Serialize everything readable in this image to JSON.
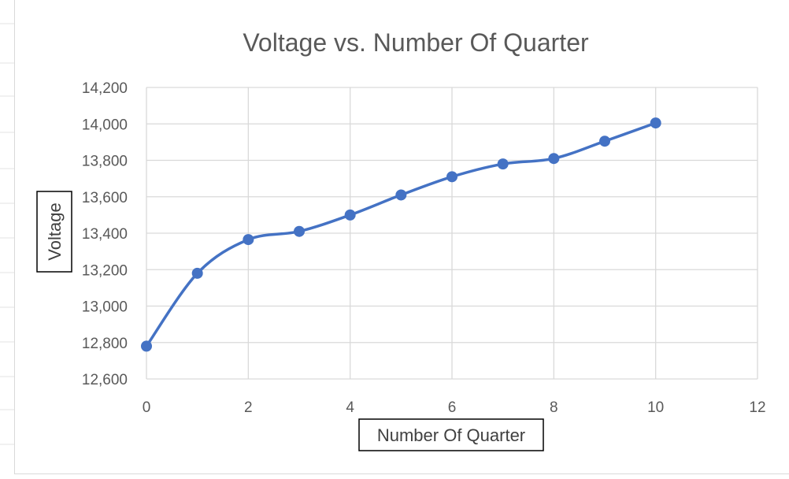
{
  "chart_data": {
    "type": "line",
    "title": "Voltage vs. Number Of Quarter",
    "xlabel": "Number Of Quarter",
    "ylabel": "Voltage",
    "xlim": [
      0,
      12
    ],
    "ylim": [
      12600,
      14200
    ],
    "x_ticks": [
      0,
      2,
      4,
      6,
      8,
      10,
      12
    ],
    "y_ticks": [
      12600,
      12800,
      13000,
      13200,
      13400,
      13600,
      13800,
      14000,
      14200
    ],
    "x_tick_labels": [
      "0",
      "2",
      "4",
      "6",
      "8",
      "10",
      "12"
    ],
    "y_tick_labels": [
      "12,600",
      "12,800",
      "13,000",
      "13,200",
      "13,400",
      "13,600",
      "13,800",
      "14,000",
      "14,200"
    ],
    "grid": true,
    "smooth": true,
    "series": [
      {
        "color": "#4472c4",
        "x": [
          0,
          1,
          2,
          3,
          4,
          5,
          6,
          7,
          8,
          9,
          10
        ],
        "values": [
          12780,
          13180,
          13365,
          13410,
          13500,
          13610,
          13710,
          13780,
          13810,
          13905,
          14005
        ]
      }
    ]
  }
}
